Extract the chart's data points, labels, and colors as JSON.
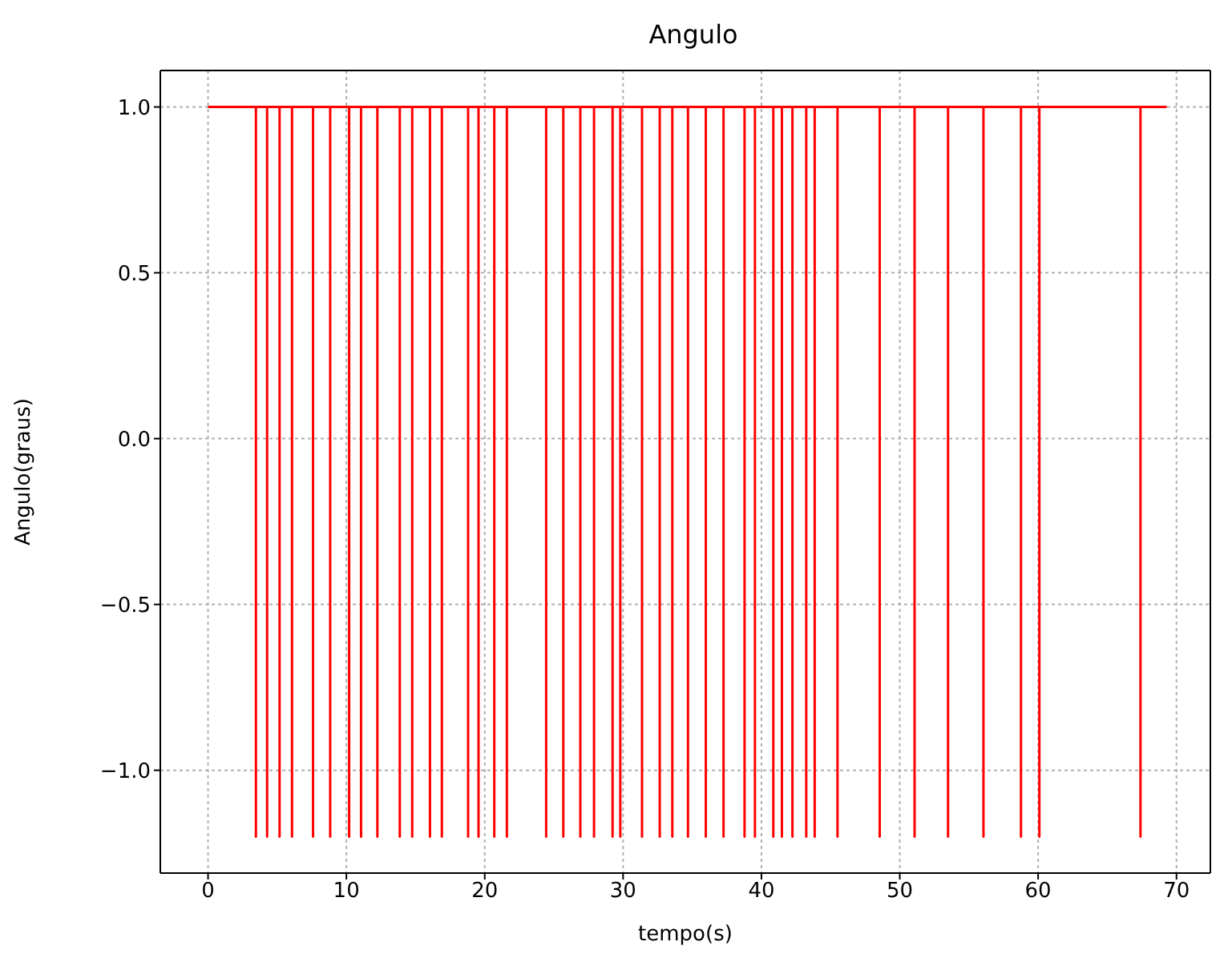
{
  "chart_data": {
    "type": "line",
    "title": "Angulo",
    "xlabel": "tempo(s)",
    "ylabel": "Angulo(graus)",
    "x": [
      0,
      3.46,
      3.46,
      3.46,
      4.27,
      4.27,
      4.27,
      5.17,
      5.17,
      5.17,
      6.07,
      6.07,
      6.07,
      7.59,
      7.59,
      7.59,
      8.83,
      8.83,
      8.83,
      10.2,
      10.2,
      10.2,
      11.06,
      11.06,
      11.06,
      12.24,
      12.24,
      12.24,
      13.86,
      13.86,
      13.86,
      14.76,
      14.76,
      14.76,
      16.04,
      16.04,
      16.04,
      16.9,
      16.9,
      16.9,
      18.8,
      18.8,
      18.8,
      19.55,
      19.55,
      19.55,
      20.69,
      20.69,
      20.69,
      21.6,
      21.6,
      21.6,
      24.44,
      24.44,
      24.44,
      25.68,
      25.68,
      25.68,
      26.91,
      26.91,
      26.91,
      27.9,
      27.9,
      27.9,
      29.24,
      29.24,
      29.24,
      29.8,
      29.8,
      29.8,
      31.37,
      31.37,
      31.37,
      32.65,
      32.65,
      32.65,
      33.56,
      33.56,
      33.56,
      34.69,
      34.69,
      34.69,
      35.98,
      35.98,
      35.98,
      37.26,
      37.26,
      37.26,
      38.78,
      38.78,
      38.78,
      39.53,
      39.53,
      39.53,
      40.86,
      40.86,
      40.86,
      41.48,
      41.48,
      41.48,
      42.24,
      42.24,
      42.24,
      43.24,
      43.24,
      43.24,
      43.85,
      43.85,
      43.85,
      45.5,
      45.5,
      45.5,
      48.55,
      48.55,
      48.55,
      51.07,
      51.07,
      51.07,
      53.49,
      53.49,
      53.49,
      56.05,
      56.05,
      56.05,
      58.76,
      58.76,
      58.76,
      60.09,
      60.09,
      60.09,
      67.4,
      67.4,
      67.4,
      69.3
    ],
    "series": [
      {
        "color": "#ff0000",
        "values": [
          1,
          1,
          -1.2,
          1,
          1,
          -1.2,
          1,
          1,
          -1.2,
          1,
          1,
          -1.2,
          1,
          1,
          -1.2,
          1,
          1,
          -1.2,
          1,
          1,
          -1.2,
          1,
          1,
          -1.2,
          1,
          1,
          -1.2,
          1,
          1,
          -1.2,
          1,
          1,
          -1.2,
          1,
          1,
          -1.2,
          1,
          1,
          -1.2,
          1,
          1,
          -1.2,
          1,
          1,
          -1.2,
          1,
          1,
          -1.2,
          1,
          1,
          -1.2,
          1,
          1,
          -1.2,
          1,
          1,
          -1.2,
          1,
          1,
          -1.2,
          1,
          1,
          -1.2,
          1,
          1,
          -1.2,
          1,
          1,
          -1.2,
          1,
          1,
          -1.2,
          1,
          1,
          -1.2,
          1,
          1,
          -1.2,
          1,
          1,
          -1.2,
          1,
          1,
          -1.2,
          1,
          1,
          -1.2,
          1,
          1,
          -1.2,
          1,
          1,
          -1.2,
          1,
          1,
          -1.2,
          1,
          1,
          -1.2,
          1,
          1,
          -1.2,
          1,
          1,
          -1.2,
          1,
          1,
          -1.2,
          1,
          1,
          -1.2,
          1,
          1,
          -1.2,
          1,
          1,
          -1.2,
          1,
          1,
          -1.2,
          1,
          1,
          -1.2,
          1,
          1,
          -1.2,
          1,
          1,
          -1.2,
          1,
          1,
          -1.2,
          1,
          1
        ]
      }
    ],
    "xlim": [
      -3.45,
      72.45
    ],
    "xticks": [
      0,
      10,
      20,
      30,
      40,
      50,
      60,
      70
    ],
    "ylim": [
      -1.31,
      1.11
    ],
    "yticks": [
      {
        "value": -1.0,
        "label": "−1.0"
      },
      {
        "value": -0.5,
        "label": "−0.5"
      },
      {
        "value": 0,
        "label": "0.0"
      },
      {
        "value": 0.5,
        "label": "0.5"
      },
      {
        "value": 1.0,
        "label": "1.0"
      }
    ],
    "grid": true,
    "marker": "none",
    "line_style": "solid"
  }
}
